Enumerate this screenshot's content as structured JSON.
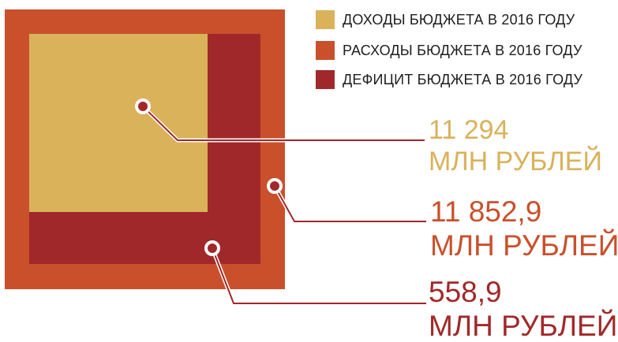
{
  "chart_data": {
    "type": "nested-square",
    "series": [
      {
        "name": "ДОХОДЫ БЮДЖЕТА В 2016 ГОДУ",
        "value": 11294,
        "value_label": "11 294",
        "unit": "МЛН РУБЛЕЙ",
        "color": "#d9b25a"
      },
      {
        "name": "РАСХОДЫ БЮДЖЕТА В 2016 ГОДУ",
        "value": 11852.9,
        "value_label": "11 852,9",
        "unit": "МЛН РУБЛЕЙ",
        "color": "#c9502b"
      },
      {
        "name": "ДЕФИЦИТ БЮДЖЕТА В 2016 ГОДУ",
        "value": 558.9,
        "value_label": "558,9",
        "unit": "МЛН РУБЛЕЙ",
        "color": "#a1282a"
      }
    ],
    "legend_position": "top-right"
  }
}
